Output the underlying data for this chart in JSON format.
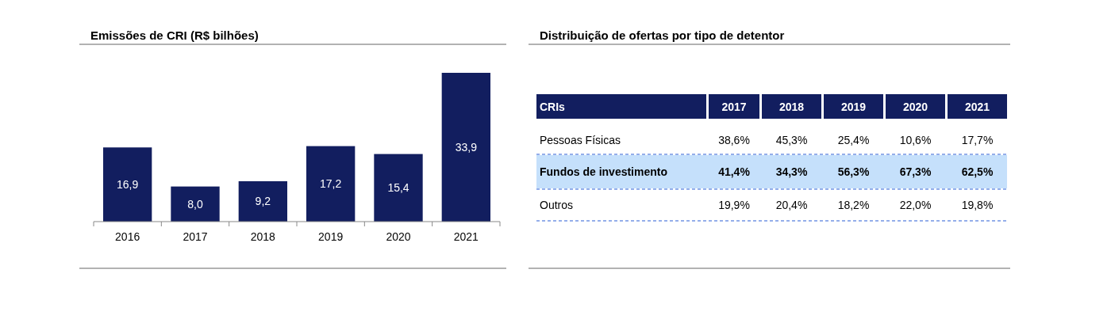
{
  "chart_data": [
    {
      "type": "bar",
      "title": "Emissões de CRI (R$ bilhões)",
      "categories": [
        "2016",
        "2017",
        "2018",
        "2019",
        "2020",
        "2021"
      ],
      "values": [
        16.9,
        8.0,
        9.2,
        17.2,
        15.4,
        33.9
      ],
      "value_labels": [
        "16,9",
        "8,0",
        "9,2",
        "17,2",
        "15,4",
        "33,9"
      ],
      "color": "#121e5f"
    },
    {
      "type": "heatmap",
      "title": "Distribuição de ofertas por tipo de detentor",
      "ylabel": "CRIs",
      "categories": [
        "2017",
        "2018",
        "2019",
        "2020",
        "2021"
      ],
      "y_categories": [
        "Pessoas Físicas",
        "Fundos de investimento",
        "Outros"
      ],
      "cells": [
        [
          "38,6%",
          "45,3%",
          "25,4%",
          "10,6%",
          "17,7%"
        ],
        [
          "41,4%",
          "34,3%",
          "56,3%",
          "67,3%",
          "62,5%"
        ],
        [
          "19,9%",
          "20,4%",
          "18,2%",
          "22,0%",
          "19,8%"
        ]
      ],
      "color": "#121e5f",
      "bands": [
        {
          "axis": "y",
          "from": "Fundos de investimento",
          "to": "Fundos de investimento",
          "color": "#c5e0fb"
        }
      ]
    }
  ]
}
